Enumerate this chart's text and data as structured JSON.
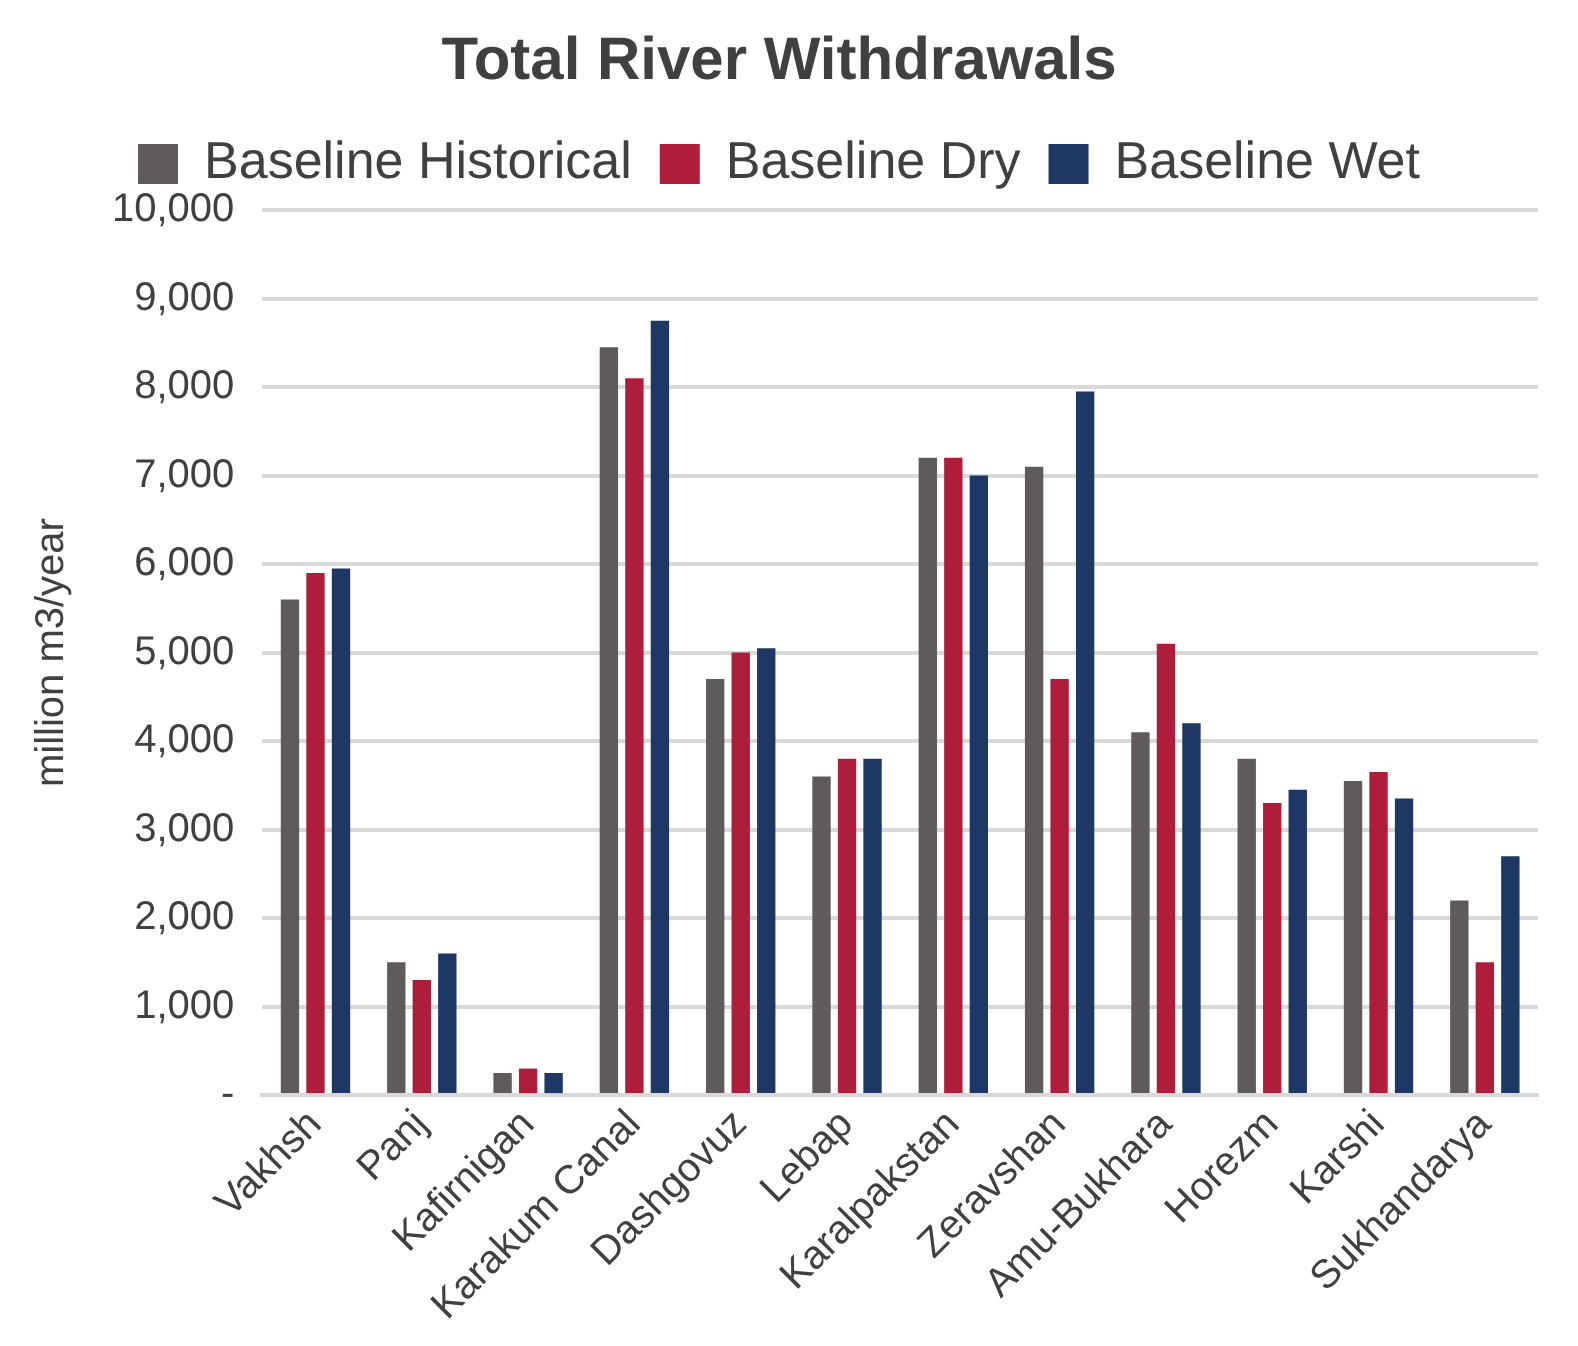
{
  "chart_data": {
    "type": "bar",
    "title": "Total River Withdrawals",
    "ylabel": "million m3/year",
    "categories": [
      "Vakhsh",
      "Panj",
      "Kafirnigan",
      "Karakum Canal",
      "Dashgovuz",
      "Lebap",
      "Karalpakstan",
      "Zeravshan",
      "Amu-Bukhara",
      "Horezm",
      "Karshi",
      "Sukhandarya"
    ],
    "series": [
      {
        "name": "Baseline Historical",
        "color": "#5f5b5c",
        "values": [
          5600,
          1500,
          250,
          8450,
          4700,
          3600,
          7200,
          7100,
          4100,
          3800,
          3550,
          2200
        ]
      },
      {
        "name": "Baseline Dry",
        "color": "#ae1e3a",
        "values": [
          5900,
          1300,
          300,
          8100,
          5000,
          3800,
          7200,
          4700,
          5100,
          3300,
          3650,
          1500
        ]
      },
      {
        "name": "Baseline Wet",
        "color": "#1e3764",
        "values": [
          5950,
          1600,
          250,
          8750,
          5050,
          3800,
          7000,
          7950,
          4200,
          3450,
          3350,
          2700
        ]
      }
    ],
    "ylim": [
      0,
      10000
    ],
    "yticks": [
      {
        "value": 0,
        "label": "-"
      },
      {
        "value": 1000,
        "label": "1,000"
      },
      {
        "value": 2000,
        "label": "2,000"
      },
      {
        "value": 3000,
        "label": "3,000"
      },
      {
        "value": 4000,
        "label": "4,000"
      },
      {
        "value": 5000,
        "label": "5,000"
      },
      {
        "value": 6000,
        "label": "6,000"
      },
      {
        "value": 7000,
        "label": "7,000"
      },
      {
        "value": 8000,
        "label": "8,000"
      },
      {
        "value": 9000,
        "label": "9,000"
      },
      {
        "value": 10000,
        "label": "10,000"
      }
    ],
    "grid": "y",
    "legend": "top"
  }
}
